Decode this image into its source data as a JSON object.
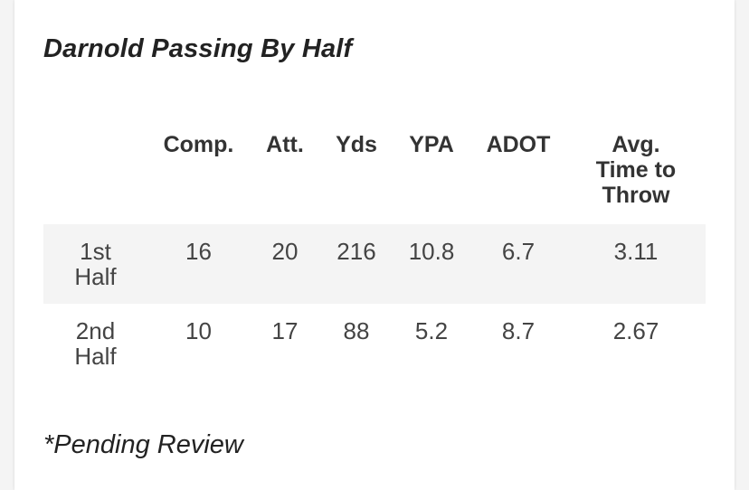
{
  "title": "Darnold Passing By Half",
  "table": {
    "headers": [
      "",
      "Comp.",
      "Att.",
      "Yds",
      "YPA",
      "ADOT",
      "Avg. Time to Throw"
    ],
    "rows": [
      {
        "label": "1st Half",
        "comp": "16",
        "att": "20",
        "yds": "216",
        "ypa": "10.8",
        "adot": "6.7",
        "ttt": "3.11"
      },
      {
        "label": "2nd Half",
        "comp": "10",
        "att": "17",
        "yds": "88",
        "ypa": "5.2",
        "adot": "8.7",
        "ttt": "2.67"
      }
    ]
  },
  "footnote": "*Pending Review",
  "colors": {
    "row_shade": "#f4f4f4",
    "text": "#333333"
  }
}
